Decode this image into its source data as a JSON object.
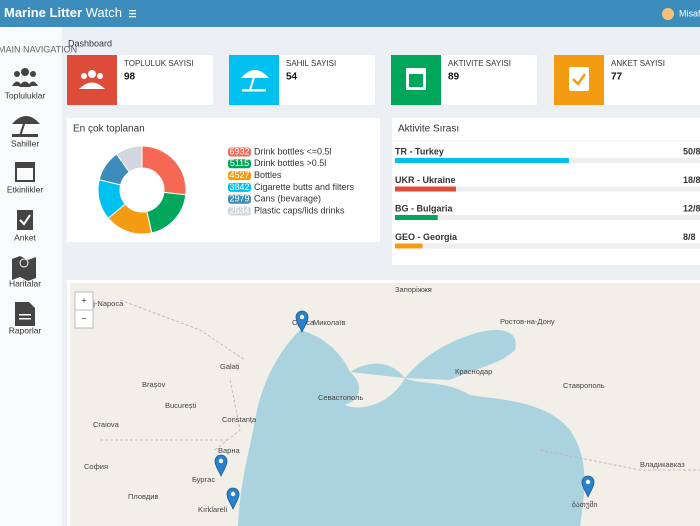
{
  "header": {
    "brand_bold": "Marine Litter",
    "brand_light": "Watch",
    "user": "Misafi"
  },
  "sidebar": {
    "heading": "MAIN NAVIGATION",
    "items": [
      "Topluluklar",
      "Sahiller",
      "Etkinlikler",
      "Anket",
      "Haritalar",
      "Raporlar"
    ]
  },
  "page_title": "Dashboard",
  "info_boxes": [
    {
      "label": "TOPLULUK SAYISI",
      "value": 98,
      "color": "#dd4b39"
    },
    {
      "label": "SAHIL SAYISI",
      "value": 54,
      "color": "#00c0ef"
    },
    {
      "label": "AKTIVITE SAYISI",
      "value": 89,
      "color": "#00a65a"
    },
    {
      "label": "ANKET SAYISI",
      "value": 77,
      "color": "#f39c12"
    }
  ],
  "collected": {
    "title": "En çok toplanan",
    "chart_data": {
      "type": "donut",
      "categories": [
        "Drink bottles <=0.5l",
        "Drink bottles >0.5l",
        "Bottles",
        "Cigarette butts and filters",
        "Cans (bevarage)",
        "Plastic caps/lids drinks"
      ],
      "values": [
        6932,
        5115,
        4527,
        3842,
        2979,
        2534
      ],
      "colors": [
        "#f56954",
        "#00a65a",
        "#f39c12",
        "#00c0ef",
        "#3c8dbc",
        "#d2d6de"
      ]
    }
  },
  "activity": {
    "title": "Aktivite Sırası",
    "rows": [
      {
        "name": "TR - Turkey",
        "score": "50/8",
        "percent": 57,
        "color": "#00c0ef"
      },
      {
        "name": "UKR - Ukraine",
        "score": "18/8",
        "percent": 20,
        "color": "#dd4b39"
      },
      {
        "name": "BG - Bulgaria",
        "score": "12/8",
        "percent": 14,
        "color": "#00a65a"
      },
      {
        "name": "GEO - Georgia",
        "score": "8/8",
        "percent": 9,
        "color": "#f39c12"
      }
    ]
  },
  "map": {
    "zoom_in": "+",
    "zoom_out": "−",
    "labels": [
      "Запоріжжя",
      "Одеса",
      "Миколаїв",
      "Ростов-на-Дону",
      "Cluj-Napoca",
      "Galați",
      "Brașov",
      "București",
      "Constanța",
      "Craiova",
      "Варна",
      "Бургас",
      "София",
      "Пловдив",
      "Kırklareli",
      "Севастополь",
      "Краснодар",
      "Ставрополь",
      "Владикавказ",
      "ბათუმი"
    ]
  }
}
